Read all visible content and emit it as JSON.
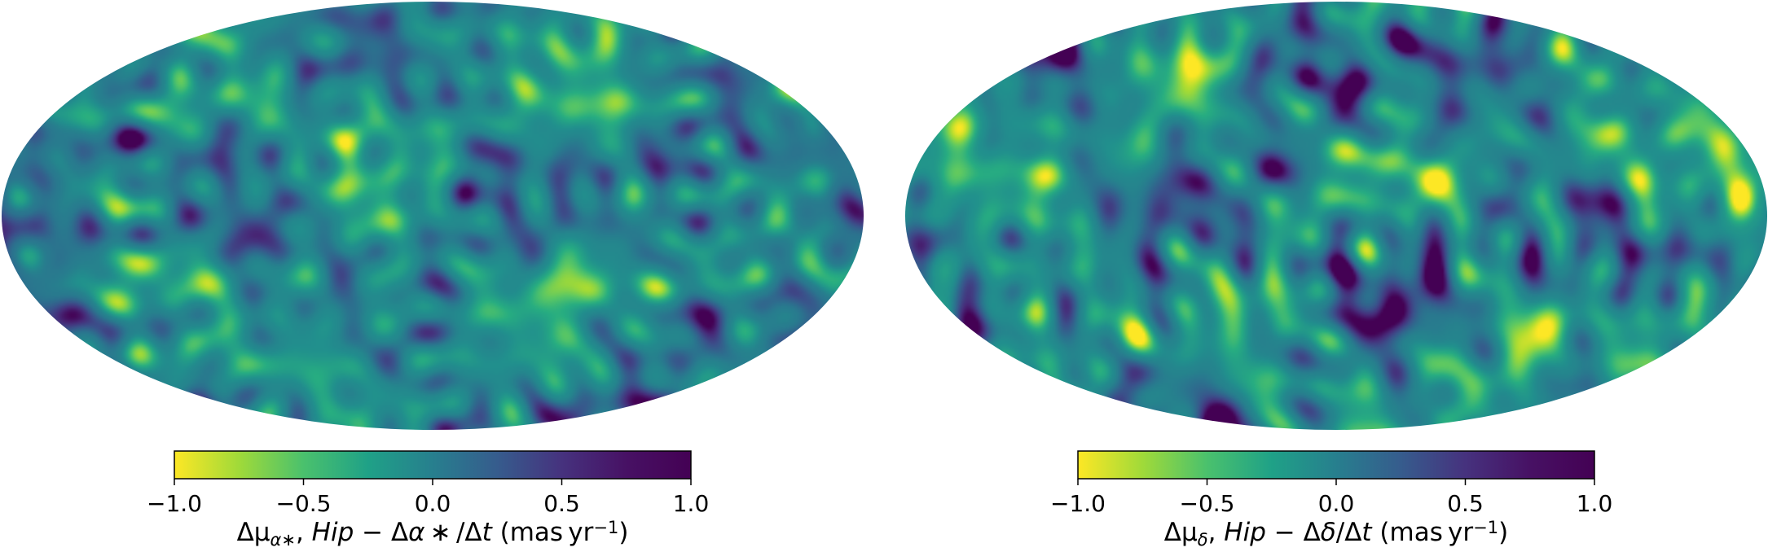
{
  "chart_data": [
    {
      "type": "heatmap",
      "projection": "mollweide",
      "title": "",
      "colormap": "viridis_r",
      "colorbar": {
        "orientation": "horizontal",
        "range": [
          -1.0,
          1.0
        ],
        "ticks": [
          -1.0,
          -0.5,
          0.0,
          0.5,
          1.0
        ],
        "tick_labels": [
          "−1.0",
          "−0.5",
          "0.0",
          "0.5",
          "1.0"
        ],
        "label_parts": [
          {
            "t": "Δμ",
            "s": "n"
          },
          {
            "t": "α∗",
            "s": "sub"
          },
          {
            "t": ", ",
            "s": "n"
          },
          {
            "t": "Hip",
            "s": "i"
          },
          {
            "t": " − Δ",
            "s": "n"
          },
          {
            "t": "α",
            "s": "i"
          },
          {
            "t": " ∗ /Δ",
            "s": "n"
          },
          {
            "t": "t",
            "s": "i"
          },
          {
            "t": " (mas yr",
            "s": "n"
          },
          {
            "t": "−1",
            "s": "sup"
          },
          {
            "t": ")",
            "s": "n"
          }
        ]
      },
      "field": {
        "mean": 0.05,
        "std": 0.28,
        "seed": 11,
        "edge_trend": "darker near west/east limbs"
      }
    },
    {
      "type": "heatmap",
      "projection": "mollweide",
      "title": "",
      "colormap": "viridis_r",
      "colorbar": {
        "orientation": "horizontal",
        "range": [
          -1.0,
          1.0
        ],
        "ticks": [
          -1.0,
          -0.5,
          0.0,
          0.5,
          1.0
        ],
        "tick_labels": [
          "−1.0",
          "−0.5",
          "0.0",
          "0.5",
          "1.0"
        ],
        "label_parts": [
          {
            "t": "Δμ",
            "s": "n"
          },
          {
            "t": "δ",
            "s": "sub"
          },
          {
            "t": ", ",
            "s": "n"
          },
          {
            "t": "Hip",
            "s": "i"
          },
          {
            "t": " − Δ",
            "s": "n"
          },
          {
            "t": "δ",
            "s": "i"
          },
          {
            "t": "/Δ",
            "s": "n"
          },
          {
            "t": "t",
            "s": "i"
          },
          {
            "t": " (mas yr",
            "s": "n"
          },
          {
            "t": "−1",
            "s": "sup"
          },
          {
            "t": ")",
            "s": "n"
          }
        ]
      },
      "field": {
        "mean": 0.1,
        "std": 0.26,
        "seed": 29,
        "edge_trend": "lighter near west/east limbs"
      }
    }
  ]
}
